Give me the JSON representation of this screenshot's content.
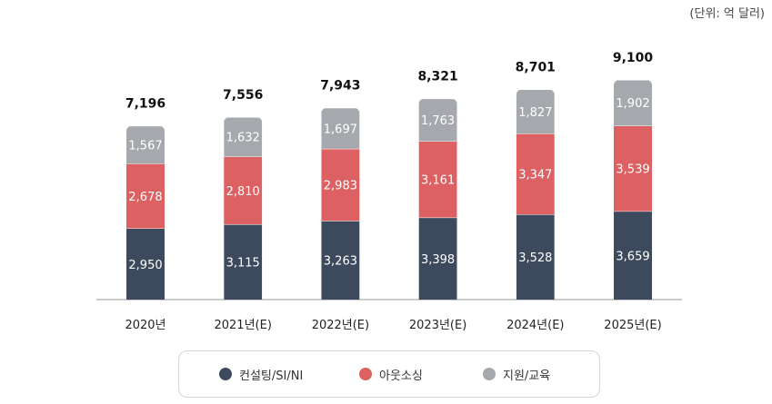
{
  "unit_label": "(단위: 억 달러)",
  "colors": {
    "consulting": "#3d4a5e",
    "outsourcing": "#dd6062",
    "support": "#a5a9ad"
  },
  "chart_data": {
    "type": "bar",
    "stacked": true,
    "categories": [
      "2020년",
      "2021년(E)",
      "2022년(E)",
      "2023년(E)",
      "2024년(E)",
      "2025년(E)"
    ],
    "series": [
      {
        "name": "컨설팅/SI/NI",
        "values": [
          2950,
          3115,
          3263,
          3398,
          3528,
          3659
        ]
      },
      {
        "name": "아웃소싱",
        "values": [
          2678,
          2810,
          2983,
          3161,
          3347,
          3539
        ]
      },
      {
        "name": "지원/교육",
        "values": [
          1567,
          1632,
          1697,
          1763,
          1827,
          1902
        ]
      }
    ],
    "totals": [
      "7,196",
      "7,556",
      "7,943",
      "8,321",
      "8,701",
      "9,100"
    ],
    "title": "",
    "xlabel": "",
    "ylabel": "",
    "ylim": [
      0,
      10000
    ],
    "grid": false,
    "legend": "bottom"
  },
  "legend": [
    {
      "label": "컨설팅/SI/NI",
      "color": "#3d4a5e"
    },
    {
      "label": "아웃소싱",
      "color": "#dd6062"
    },
    {
      "label": "지원/교육",
      "color": "#a5a9ad"
    }
  ]
}
